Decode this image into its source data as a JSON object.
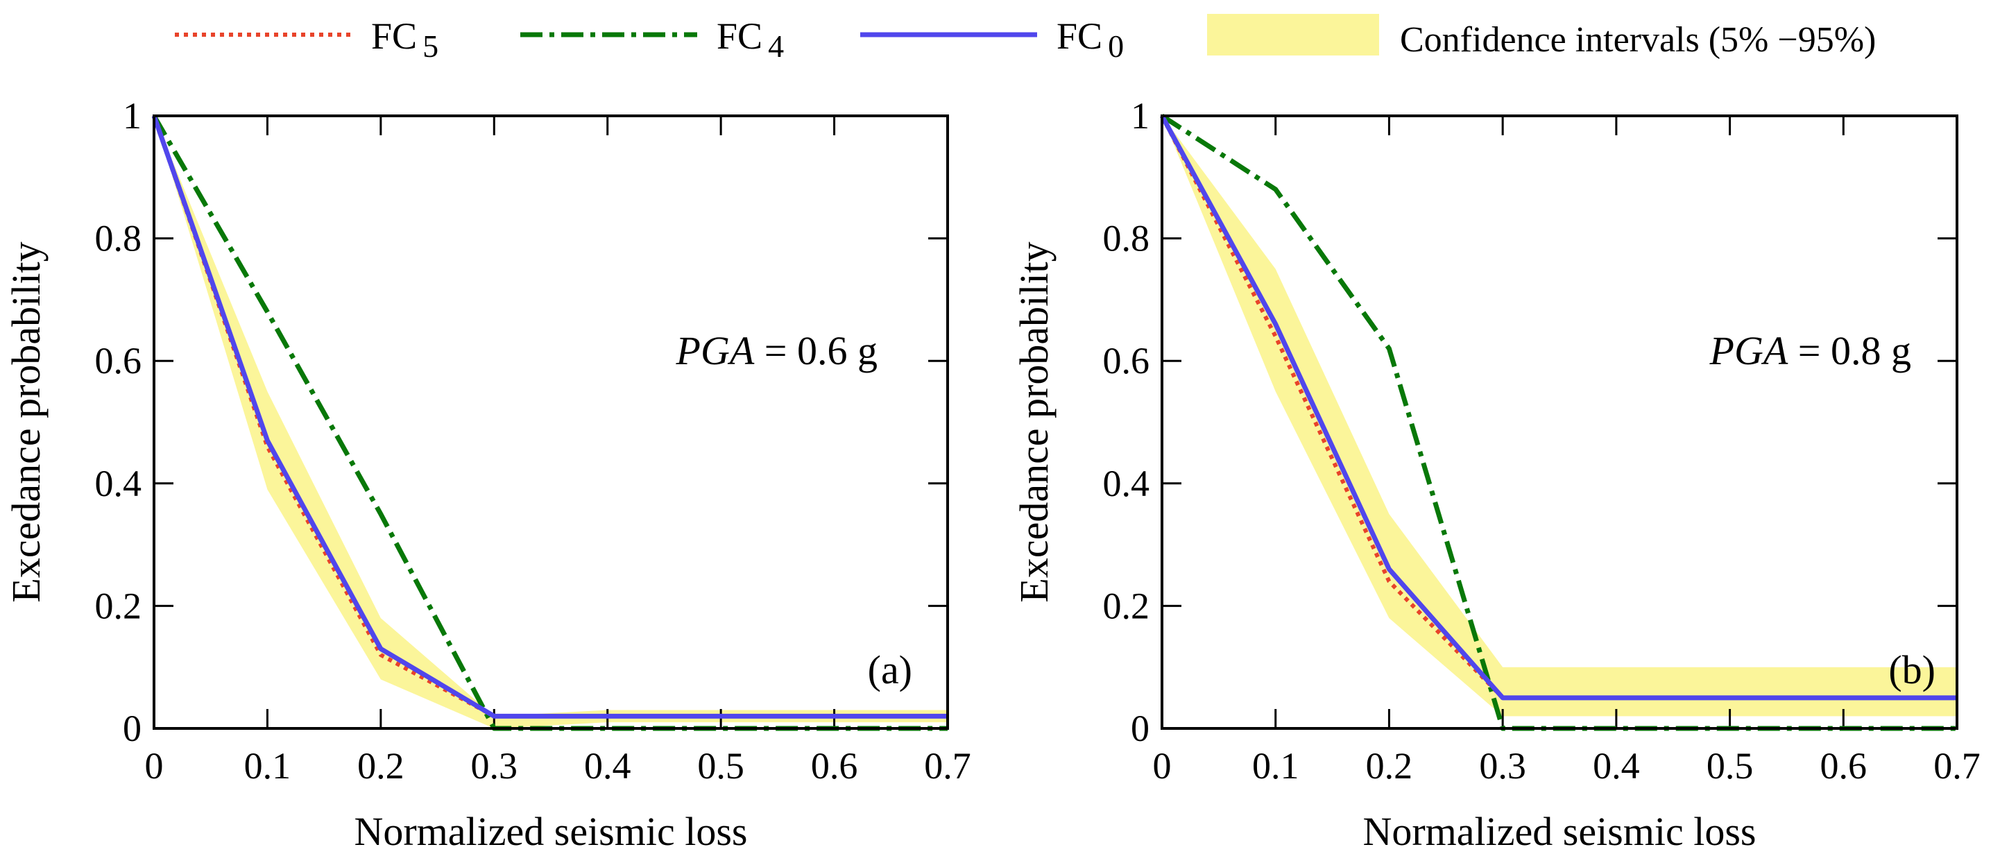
{
  "legend": {
    "items": [
      {
        "label": "FC",
        "sub": "5",
        "style": "dotted",
        "color": "#e8432a"
      },
      {
        "label": "FC",
        "sub": "4",
        "style": "dashdot",
        "color": "#087808"
      },
      {
        "label": "FC",
        "sub": "0",
        "style": "solid",
        "color": "#5046ec"
      },
      {
        "label": "Confidence intervals (5% −95%)",
        "style": "band",
        "color": "#fbf59a"
      }
    ]
  },
  "chart_data": [
    {
      "type": "line",
      "panel_label": "(a)",
      "annotation": {
        "italic": "PGA",
        "text": " = 0.6 g"
      },
      "xlabel": "Normalized seismic loss",
      "ylabel": "Excedance probability",
      "xlim": [
        0,
        0.7
      ],
      "ylim": [
        0,
        1
      ],
      "xticks": [
        0,
        0.1,
        0.2,
        0.3,
        0.4,
        0.5,
        0.6,
        0.7
      ],
      "xtick_labels": [
        "0",
        "0.1",
        "0.2",
        "0.3",
        "0.4",
        "0.5",
        "0.6",
        "0.7"
      ],
      "yticks": [
        0,
        0.2,
        0.4,
        0.6,
        0.8,
        1
      ],
      "ytick_labels": [
        "0",
        "0.2",
        "0.4",
        "0.6",
        "0.8",
        "1"
      ],
      "x": [
        0,
        0.1,
        0.2,
        0.3,
        0.4,
        0.5,
        0.6,
        0.7
      ],
      "band": {
        "name": "Confidence intervals (5% −95%)",
        "lower": [
          1,
          0.39,
          0.08,
          0.0,
          0.01,
          0.01,
          0.01,
          0.01
        ],
        "upper": [
          1,
          0.55,
          0.18,
          0.02,
          0.03,
          0.03,
          0.03,
          0.03
        ]
      },
      "series": [
        {
          "name": "FC5",
          "values": [
            1,
            0.46,
            0.12,
            0.02,
            0.02,
            0.02,
            0.02,
            0.02
          ]
        },
        {
          "name": "FC4",
          "values": [
            1,
            0.68,
            0.35,
            0.0,
            0.0,
            0.0,
            0.0,
            0.0
          ]
        },
        {
          "name": "FC0",
          "values": [
            1,
            0.47,
            0.13,
            0.02,
            0.02,
            0.02,
            0.02,
            0.02
          ]
        }
      ]
    },
    {
      "type": "line",
      "panel_label": "(b)",
      "annotation": {
        "italic": "PGA",
        "text": " = 0.8 g"
      },
      "xlabel": "Normalized seismic loss",
      "ylabel": "Excedance probability",
      "xlim": [
        0,
        0.7
      ],
      "ylim": [
        0,
        1
      ],
      "xticks": [
        0,
        0.1,
        0.2,
        0.3,
        0.4,
        0.5,
        0.6,
        0.7
      ],
      "xtick_labels": [
        "0",
        "0.1",
        "0.2",
        "0.3",
        "0.4",
        "0.5",
        "0.6",
        "0.7"
      ],
      "yticks": [
        0,
        0.2,
        0.4,
        0.6,
        0.8,
        1
      ],
      "ytick_labels": [
        "0",
        "0.2",
        "0.4",
        "0.6",
        "0.8",
        "1"
      ],
      "x": [
        0,
        0.1,
        0.2,
        0.3,
        0.4,
        0.5,
        0.6,
        0.7
      ],
      "band": {
        "name": "Confidence intervals (5% −95%)",
        "lower": [
          1,
          0.55,
          0.18,
          0.02,
          0.02,
          0.02,
          0.02,
          0.02
        ],
        "upper": [
          1,
          0.75,
          0.35,
          0.1,
          0.1,
          0.1,
          0.1,
          0.1
        ]
      },
      "series": [
        {
          "name": "FC5",
          "values": [
            1,
            0.64,
            0.24,
            0.05,
            0.05,
            0.05,
            0.05,
            0.05
          ]
        },
        {
          "name": "FC4",
          "values": [
            1,
            0.88,
            0.62,
            0.0,
            0.0,
            0.0,
            0.0,
            0.0
          ]
        },
        {
          "name": "FC0",
          "values": [
            1,
            0.66,
            0.26,
            0.05,
            0.05,
            0.05,
            0.05,
            0.05
          ]
        }
      ]
    }
  ]
}
